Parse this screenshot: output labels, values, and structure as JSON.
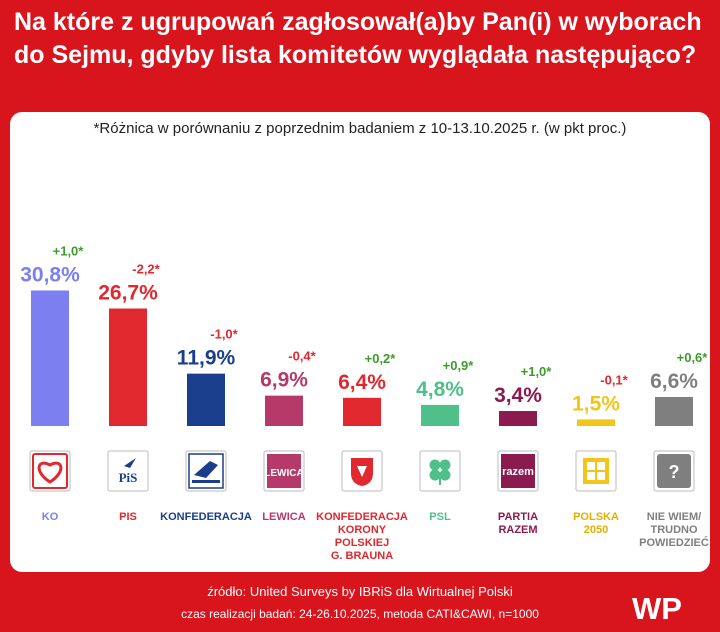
{
  "title": "Na które z ugrupowań zagłosował(a)by Pan(i) w wyborach do Sejmu, gdyby lista komitetów wyglądała następująco?",
  "note": "*Różnica w porównaniu z poprzednim badaniem z 10-13.10.2025 r. (w pkt proc.)",
  "footer": {
    "source": "źródło: United Surveys by IBRiS dla Wirtualnej Polski",
    "time": "czas realizacji badań: 24-26.10.2025, metoda CATI&CAWI, n=1000"
  },
  "logo_text": "WP",
  "chart_data": {
    "type": "bar",
    "categories": [
      "KO",
      "PIS",
      "KONFEDERACJA",
      "LEWICA",
      "KONFEDERACJA KORONY POLSKIEJ G. BRAUNA",
      "PSL",
      "PARTIA RAZEM",
      "POLSKA 2050",
      "NIE WIEM/ TRUDNO POWIEDZIEĆ"
    ],
    "label_lines": [
      [
        "KO"
      ],
      [
        "PIS"
      ],
      [
        "KONFEDERACJA"
      ],
      [
        "LEWICA"
      ],
      [
        "KONFEDERACJA",
        "KORONY",
        "POLSKIEJ",
        "G. BRAUNA"
      ],
      [
        "PSL"
      ],
      [
        "PARTIA",
        "RAZEM"
      ],
      [
        "POLSKA",
        "2050"
      ],
      [
        "NIE WIEM/",
        "TRUDNO",
        "POWIEDZIEĆ"
      ]
    ],
    "values": [
      30.8,
      26.7,
      11.9,
      6.9,
      6.4,
      4.8,
      3.4,
      1.5,
      6.6
    ],
    "value_labels": [
      "30,8%",
      "26,7%",
      "11,9%",
      "6,9%",
      "6,4%",
      "4,8%",
      "3,4%",
      "1,5%",
      "6,6%"
    ],
    "changes": [
      "+1,0*",
      "-2,2*",
      "-1,0*",
      "-0,4*",
      "+0,2*",
      "+0,9*",
      "+1,0*",
      "-0,1*",
      "+0,6*"
    ],
    "change_values": [
      1.0,
      -2.2,
      -1.0,
      -0.4,
      0.2,
      0.9,
      1.0,
      -0.1,
      0.6
    ],
    "colors": [
      "#7b7ff0",
      "#e0282e",
      "#1a3e8c",
      "#b53a6a",
      "#e0282e",
      "#4fc08a",
      "#8b1a4f",
      "#f2c518",
      "#7f7f7f"
    ],
    "icons": [
      "ko-heart-icon",
      "pis-logo-icon",
      "konfederacja-logo-icon",
      "lewica-logo-icon",
      "korona-shield-icon",
      "psl-clover-icon",
      "razem-logo-icon",
      "polska2050-logo-icon",
      "question-mark-icon"
    ],
    "icon_texts": [
      "",
      "PiS",
      "",
      "LEWICA",
      "",
      "",
      "razem",
      "",
      "?"
    ],
    "increase_color": "#3f9a2e",
    "decrease_color": "#e0282e"
  }
}
